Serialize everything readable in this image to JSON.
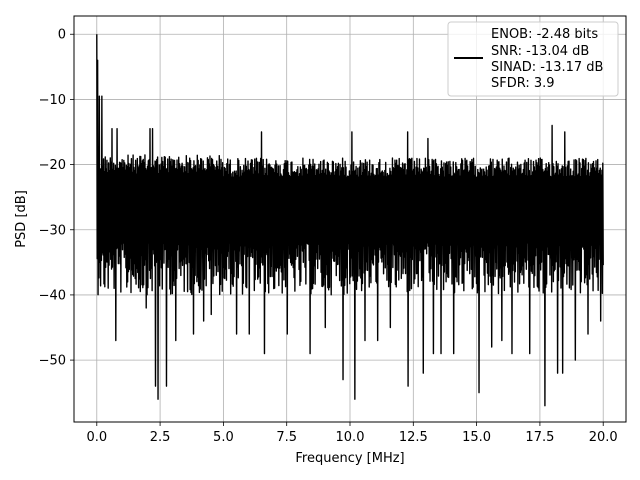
{
  "chart_data": {
    "type": "line",
    "xlabel": "Frequency [MHz]",
    "ylabel": "PSD [dB]",
    "xlim": [
      -0.9,
      20.9
    ],
    "ylim": [
      -59.5,
      2.8
    ],
    "grid": true,
    "x_ticks": [
      0.0,
      2.5,
      5.0,
      7.5,
      10.0,
      12.5,
      15.0,
      17.5,
      20.0
    ],
    "x_tick_labels": [
      "0.0",
      "2.5",
      "5.0",
      "7.5",
      "10.0",
      "12.5",
      "15.0",
      "17.5",
      "20.0"
    ],
    "y_ticks": [
      0,
      -10,
      -20,
      -30,
      -40,
      -50
    ],
    "y_tick_labels": [
      "0",
      "−10",
      "−20",
      "−30",
      "−40",
      "−50"
    ],
    "legend": {
      "placement": "top-right",
      "entries": [
        "ENOB: -2.48 bits",
        "SNR: -13.04 dB",
        "SINAD: -13.17 dB",
        "SFDR: 3.9"
      ]
    },
    "series": [
      {
        "color": "#000000",
        "x_start": 0.0,
        "x_end": 20.0,
        "points": 1200,
        "peak": [
          0.0,
          0.0
        ],
        "noise_floor_mean": -28,
        "upper_envelope": -17,
        "lower_dips": [
          [
            0.1,
            -35
          ],
          [
            0.75,
            -47
          ],
          [
            1.2,
            -38
          ],
          [
            1.95,
            -42
          ],
          [
            2.3,
            -54
          ],
          [
            2.4,
            -56
          ],
          [
            2.75,
            -54
          ],
          [
            3.1,
            -47
          ],
          [
            3.8,
            -46
          ],
          [
            4.2,
            -44
          ],
          [
            4.5,
            -43
          ],
          [
            5.5,
            -46
          ],
          [
            6.0,
            -46
          ],
          [
            6.6,
            -49
          ],
          [
            7.5,
            -46
          ],
          [
            8.4,
            -49
          ],
          [
            9.0,
            -45
          ],
          [
            9.7,
            -53
          ],
          [
            10.2,
            -56
          ],
          [
            10.6,
            -47
          ],
          [
            11.1,
            -47
          ],
          [
            11.6,
            -45
          ],
          [
            12.3,
            -54
          ],
          [
            12.9,
            -52
          ],
          [
            13.3,
            -49
          ],
          [
            13.6,
            -49
          ],
          [
            14.1,
            -49
          ],
          [
            15.1,
            -55
          ],
          [
            15.6,
            -48
          ],
          [
            16.0,
            -47
          ],
          [
            16.4,
            -49
          ],
          [
            17.1,
            -49
          ],
          [
            17.7,
            -57
          ],
          [
            18.2,
            -52
          ],
          [
            18.4,
            -52
          ],
          [
            18.9,
            -50
          ],
          [
            19.4,
            -46
          ],
          [
            19.9,
            -44
          ]
        ],
        "upper_spikes": [
          [
            0.05,
            -4
          ],
          [
            0.1,
            -9.5
          ],
          [
            0.2,
            -9.5
          ],
          [
            0.6,
            -14.5
          ],
          [
            0.8,
            -14.5
          ],
          [
            2.1,
            -14.5
          ],
          [
            2.2,
            -14.5
          ],
          [
            6.5,
            -15
          ],
          [
            10.1,
            -15
          ],
          [
            12.3,
            -15
          ],
          [
            13.1,
            -16
          ],
          [
            18.0,
            -14
          ],
          [
            18.5,
            -15
          ]
        ]
      }
    ]
  }
}
